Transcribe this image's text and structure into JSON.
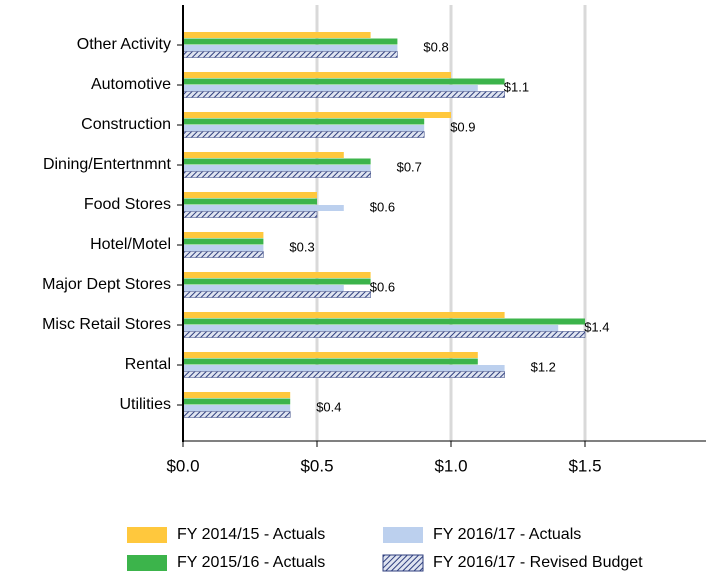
{
  "chart_data": {
    "type": "bar",
    "orientation": "horizontal",
    "categories": [
      "Other Activity",
      "Automotive",
      "Construction",
      "Dining/Entertnmnt",
      "Food Stores",
      "Hotel/Motel",
      "Major Dept Stores",
      "Misc Retail Stores",
      "Rental",
      "Utilities"
    ],
    "series": [
      {
        "name": "FY 2014/15 - Actuals",
        "color": "#ffc83d",
        "values": [
          0.7,
          1.0,
          1.0,
          0.6,
          0.5,
          0.3,
          0.7,
          1.2,
          1.1,
          0.4
        ]
      },
      {
        "name": "FY 2015/16 - Actuals",
        "color": "#3cb44b",
        "values": [
          0.8,
          1.2,
          0.9,
          0.7,
          0.5,
          0.3,
          0.7,
          1.5,
          1.1,
          0.4
        ]
      },
      {
        "name": "FY 2016/17 - Actuals",
        "color": "#bcd0ee",
        "values": [
          0.8,
          1.1,
          0.9,
          0.7,
          0.6,
          0.3,
          0.6,
          1.4,
          1.2,
          0.4
        ],
        "value_labels": [
          "$0.8",
          "$1.1",
          "$0.9",
          "$0.7",
          "$0.6",
          "$0.3",
          "$0.6",
          "$1.4",
          "$1.2",
          "$0.4"
        ]
      },
      {
        "name": "FY 2016/17 - Revised Budget",
        "color": "#2f3f7f",
        "pattern": "hatch",
        "values": [
          0.8,
          1.2,
          0.9,
          0.7,
          0.5,
          0.3,
          0.7,
          1.5,
          1.2,
          0.4
        ]
      }
    ],
    "xlim": [
      0,
      1.95
    ],
    "xticks": [
      {
        "value": 0,
        "label": "$0.0"
      },
      {
        "value": 0.5,
        "label": "$0.5"
      },
      {
        "value": 1.0,
        "label": "$1.0"
      },
      {
        "value": 1.5,
        "label": "$1.5"
      }
    ],
    "grid": true,
    "legend": "bottom"
  }
}
